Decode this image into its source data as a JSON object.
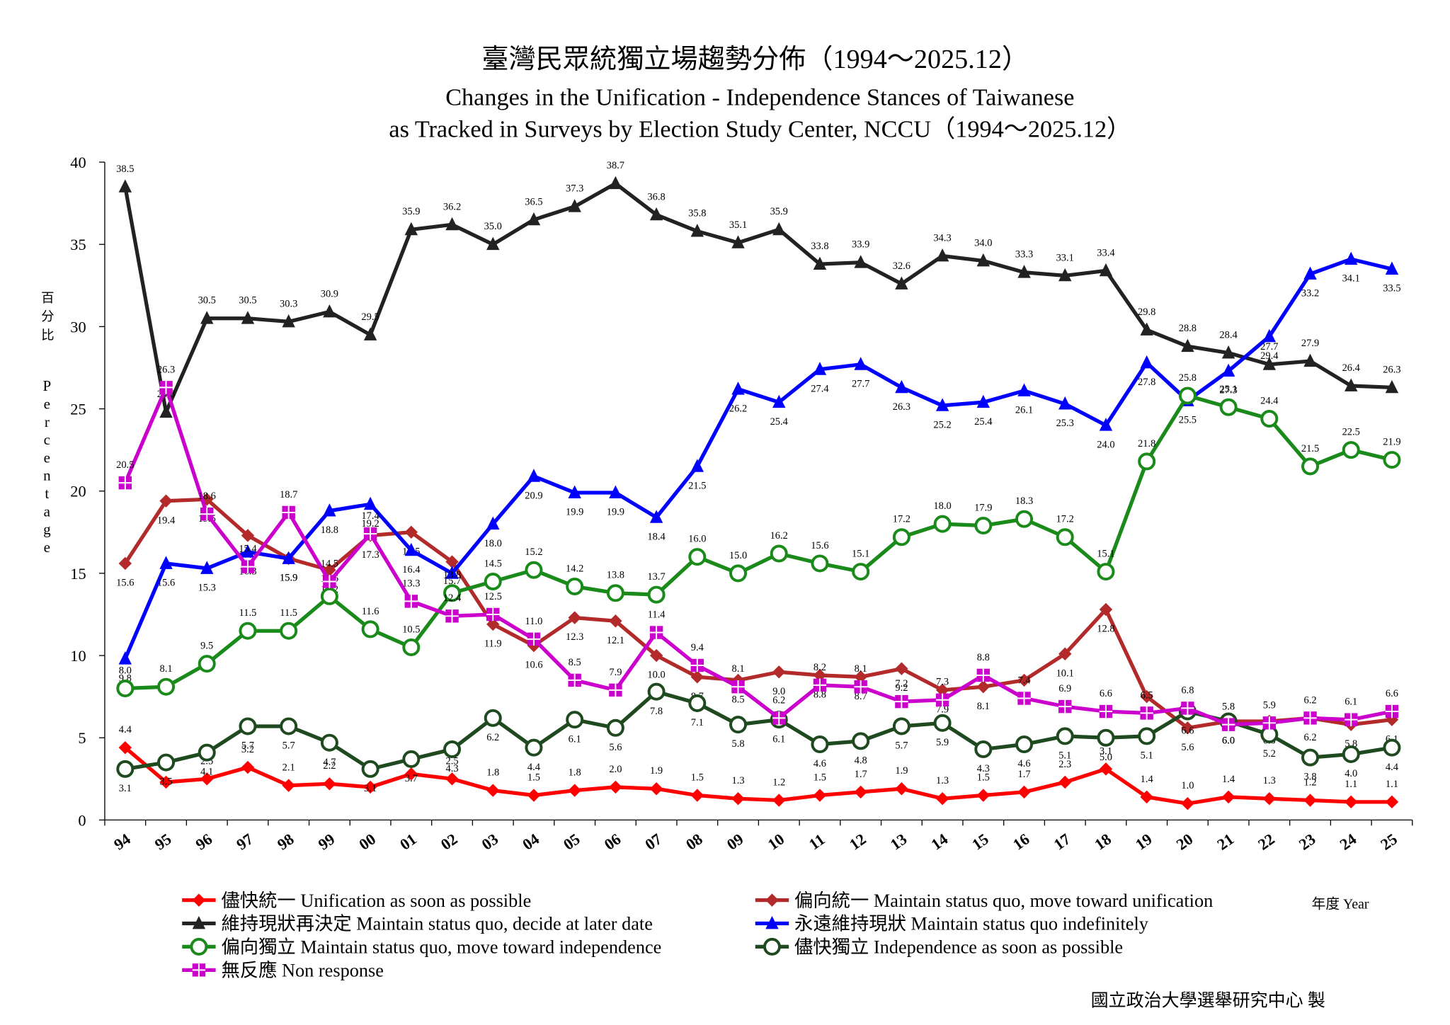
{
  "chart_data": {
    "type": "line",
    "title": "臺灣民眾統獨立場趨勢分佈（1994～2025.12）",
    "subtitle": [
      "Changes in the Unification - Independence Stances of Taiwanese",
      "as Tracked in Surveys by Election Study Center, NCCU（1994～2025.12）"
    ],
    "y_label": [
      "百分比",
      "Percentage"
    ],
    "x_label": "年度 Year",
    "source": "國立政治大學選舉研究中心 製",
    "categories": [
      "94",
      "95",
      "96",
      "97",
      "98",
      "99",
      "00",
      "01",
      "02",
      "03",
      "04",
      "05",
      "06",
      "07",
      "08",
      "09",
      "10",
      "11",
      "12",
      "13",
      "14",
      "15",
      "16",
      "17",
      "18",
      "19",
      "20",
      "21",
      "22",
      "23",
      "24",
      "25"
    ],
    "ylim": [
      0,
      40
    ],
    "yticks": [
      0,
      5,
      10,
      15,
      20,
      25,
      30,
      35,
      40
    ],
    "grid": false,
    "series": [
      {
        "name": "儘快統一 Unification as soon as possible",
        "color": "#ff0000",
        "marker": "diamond",
        "values": [
          4.4,
          2.3,
          2.5,
          3.2,
          2.1,
          2.2,
          2.0,
          2.8,
          2.5,
          1.8,
          1.5,
          1.8,
          2.0,
          1.9,
          1.5,
          1.3,
          1.2,
          1.5,
          1.7,
          1.9,
          1.3,
          1.5,
          1.7,
          2.3,
          3.1,
          1.4,
          1.0,
          1.4,
          1.3,
          1.2,
          1.1,
          1.1
        ],
        "value_labels": [
          "4.4",
          "2.3",
          "2.5",
          "3.2",
          "2.1",
          "2.2",
          "2.0",
          "2.8",
          "2.5",
          "1.8",
          "1.5",
          "1.8",
          "2.0",
          "1.9",
          "1.5",
          "1.3",
          "1.2",
          "1.5",
          "1.7",
          "1.9",
          "1.3",
          "1.5",
          "1.7",
          "2.3",
          "3.1",
          "1.4",
          "1.0",
          "1.4",
          "1.3",
          "1.2",
          "1.1",
          "1.1"
        ]
      },
      {
        "name": "偏向統一 Maintain status quo, move toward unification",
        "color": "#b22a2a",
        "marker": "diamond",
        "values": [
          15.6,
          19.4,
          19.5,
          17.3,
          15.9,
          15.2,
          17.3,
          17.5,
          15.7,
          11.9,
          10.6,
          12.3,
          12.1,
          10.0,
          8.7,
          8.5,
          9.0,
          8.8,
          8.7,
          9.2,
          7.9,
          8.1,
          8.5,
          10.1,
          12.8,
          7.5,
          5.6,
          6.0,
          6.0,
          6.2,
          5.8,
          6.1
        ],
        "value_labels": [
          "15.6",
          "19.4",
          "19.5",
          "17.3",
          "15.9",
          "15.2",
          "17.3",
          "17.5",
          "15.7",
          "11.9",
          "10.6",
          "12.3",
          "12.1",
          "10.0",
          "8.7",
          "8.5",
          "9.0",
          "8.8",
          "8.7",
          "9.2",
          "7.9",
          "8.1",
          "8.5",
          "10.1",
          "12.8",
          "7.5",
          "5.6",
          "6.0",
          "6.0",
          "6.2",
          "5.8",
          "6.1"
        ]
      },
      {
        "name": "維持現狀再決定 Maintain status quo, decide at later date",
        "color": "#222222",
        "marker": "triangle",
        "values": [
          38.5,
          24.8,
          30.5,
          30.5,
          30.3,
          30.9,
          29.5,
          35.9,
          36.2,
          35.0,
          36.5,
          37.3,
          38.7,
          36.8,
          35.8,
          35.1,
          35.9,
          33.8,
          33.9,
          32.6,
          34.3,
          34.0,
          33.3,
          33.1,
          33.4,
          29.8,
          28.8,
          28.4,
          27.7,
          27.9,
          26.4,
          26.3
        ],
        "value_labels": [
          "38.5",
          "24.8",
          "30.5",
          "30.5",
          "30.3",
          "30.9",
          "29.5",
          "35.9",
          "36.2",
          "35.0",
          "36.5",
          "37.3",
          "38.7",
          "36.8",
          "35.8",
          "35.1",
          "35.9",
          "33.8",
          "33.9",
          "32.6",
          "34.3",
          "34.0",
          "33.3",
          "33.1",
          "33.4",
          "29.8",
          "28.8",
          "28.4",
          "27.7",
          "27.9",
          "26.4",
          "26.3"
        ]
      },
      {
        "name": "永遠維持現狀 Maintain status quo indefinitely",
        "color": "#0000ff",
        "marker": "triangle",
        "values": [
          9.8,
          15.6,
          15.3,
          16.3,
          15.9,
          18.8,
          19.2,
          16.4,
          15.0,
          18.0,
          20.9,
          19.9,
          19.9,
          18.4,
          21.5,
          26.2,
          25.4,
          27.4,
          27.7,
          26.3,
          25.2,
          25.4,
          26.1,
          25.3,
          24.0,
          27.8,
          25.5,
          27.3,
          29.4,
          33.2,
          34.1,
          33.5
        ],
        "value_labels": [
          "9.8",
          "15.6",
          "15.3",
          "16.3",
          "15.9",
          "18.8",
          "19.2",
          "16.4",
          "15.0",
          "18.0",
          "20.9",
          "19.9",
          "19.9",
          "18.4",
          "21.5",
          "26.2",
          "25.4",
          "27.4",
          "27.7",
          "26.3",
          "25.2",
          "25.4",
          "26.1",
          "25.3",
          "24.0",
          "27.8",
          "25.5",
          "27.3",
          "29.4",
          "33.2",
          "34.1",
          "33.5"
        ]
      },
      {
        "name": "偏向獨立 Maintain status quo, move toward independence",
        "color": "#1a8a1a",
        "marker": "circle",
        "values": [
          8.0,
          8.1,
          9.5,
          11.5,
          11.5,
          13.6,
          11.6,
          10.5,
          13.8,
          14.5,
          15.2,
          14.2,
          13.8,
          13.7,
          16.0,
          15.0,
          16.2,
          15.6,
          15.1,
          17.2,
          18.0,
          17.9,
          18.3,
          17.2,
          15.1,
          21.8,
          25.8,
          25.1,
          24.4,
          21.5,
          22.5,
          21.9
        ],
        "value_labels": [
          "8.0",
          "8.1",
          "9.5",
          "11.5",
          "11.5",
          "13.6",
          "11.6",
          "10.5",
          "13.8",
          "14.5",
          "15.2",
          "14.2",
          "13.8",
          "13.7",
          "16.0",
          "15.0",
          "16.2",
          "15.6",
          "15.1",
          "17.2",
          "18.0",
          "17.9",
          "18.3",
          "17.2",
          "15.1",
          "21.8",
          "25.8",
          "25.1",
          "24.4",
          "21.5",
          "22.5",
          "21.9"
        ]
      },
      {
        "name": "儘快獨立 Independence as soon as possible",
        "color": "#1f4a1f",
        "marker": "circle",
        "values": [
          3.1,
          3.5,
          4.1,
          5.7,
          5.7,
          4.7,
          3.1,
          3.7,
          4.3,
          6.2,
          4.4,
          6.1,
          5.6,
          7.8,
          7.1,
          5.8,
          6.1,
          4.6,
          4.8,
          5.7,
          5.9,
          4.3,
          4.6,
          5.1,
          5.0,
          5.1,
          6.6,
          6.0,
          5.2,
          3.8,
          4.0,
          4.4
        ],
        "value_labels": [
          "3.1",
          "3.5",
          "4.1",
          "5.7",
          "5.7",
          "4.7",
          "3.1",
          "3.7",
          "4.3",
          "6.2",
          "4.4",
          "6.1",
          "5.6",
          "7.8",
          "7.1",
          "5.8",
          "6.1",
          "4.6",
          "4.8",
          "5.7",
          "5.9",
          "4.3",
          "4.6",
          "5.1",
          "5.0",
          "5.1",
          "6.6",
          "6.0",
          "5.2",
          "3.8",
          "4.0",
          "4.4"
        ]
      },
      {
        "name": "無反應 Non response",
        "color": "#cc00cc",
        "marker": "square",
        "values": [
          20.5,
          26.3,
          18.6,
          15.4,
          18.7,
          14.5,
          17.4,
          13.3,
          12.4,
          12.5,
          11.0,
          8.5,
          7.9,
          11.4,
          9.4,
          8.1,
          6.2,
          8.2,
          8.1,
          7.2,
          7.3,
          8.8,
          7.4,
          6.9,
          6.6,
          6.5,
          6.8,
          5.8,
          5.9,
          6.2,
          6.1,
          6.6
        ],
        "value_labels": [
          "20.5",
          "26.3",
          "18.6",
          "15.4",
          "18.7",
          "14.5",
          "17.4",
          "13.3",
          "12.4",
          "12.5",
          "11.0",
          "8.5",
          "7.9",
          "11.4",
          "9.4",
          "8.1",
          "6.2",
          "8.2",
          "8.1",
          "7.2",
          "7.3",
          "8.8",
          "7.4",
          "6.9",
          "6.6",
          "6.5",
          "6.8",
          "5.8",
          "5.9",
          "6.2",
          "6.1",
          "6.6"
        ]
      }
    ]
  }
}
